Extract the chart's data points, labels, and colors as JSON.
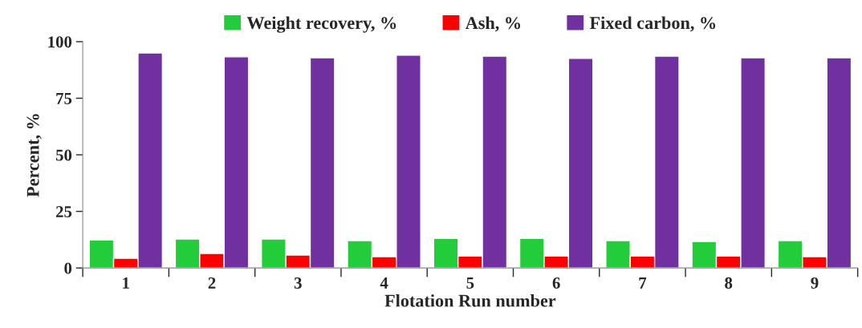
{
  "chart_data": {
    "type": "bar",
    "xlabel": "Flotation Run number",
    "ylabel": "Percent, %",
    "categories": [
      "1",
      "2",
      "3",
      "4",
      "5",
      "6",
      "7",
      "8",
      "9"
    ],
    "series": [
      {
        "name": "Weight recovery, %",
        "color": "#22cc3a",
        "values": [
          12.4,
          12.8,
          12.8,
          12.1,
          13.1,
          13.1,
          12.1,
          11.7,
          12.1
        ]
      },
      {
        "name": "Ash, %",
        "color": "#ff0000",
        "values": [
          4.3,
          6.4,
          5.7,
          5.0,
          5.3,
          5.3,
          5.3,
          5.3,
          5.0
        ]
      },
      {
        "name": "Fixed carbon, %",
        "color": "#7030a0",
        "values": [
          95.0,
          93.3,
          92.9,
          94.0,
          93.6,
          92.6,
          93.6,
          92.9,
          92.9
        ]
      }
    ],
    "ylim": [
      0,
      100
    ],
    "yticks": [
      0,
      25,
      50,
      75,
      100
    ],
    "grid": false,
    "legend": "top"
  }
}
